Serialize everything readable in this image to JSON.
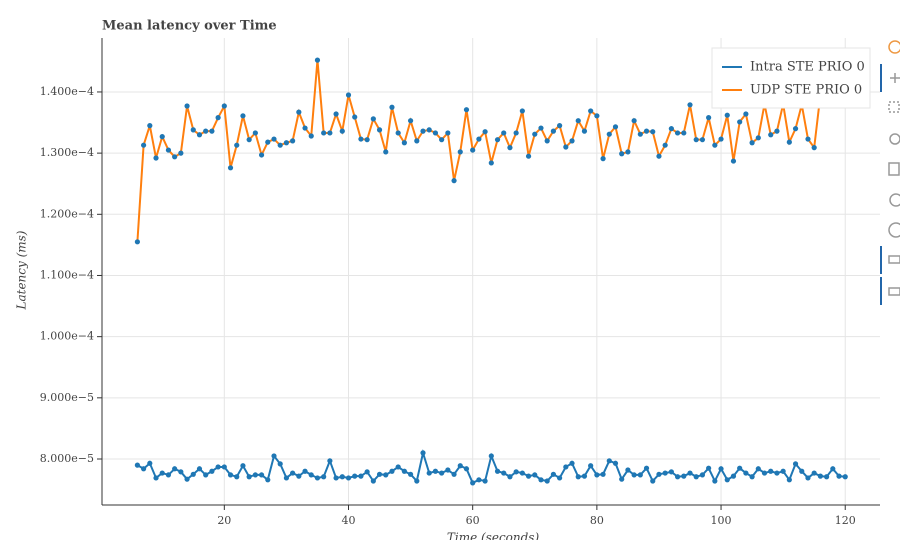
{
  "chart_data": {
    "type": "line",
    "title": "Mean latency over Time",
    "x_label": "Time (seconds)",
    "y_label": "Latency (ms)",
    "x": [
      6,
      7,
      8,
      9,
      10,
      11,
      12,
      13,
      14,
      15,
      16,
      17,
      18,
      19,
      20,
      21,
      22,
      23,
      24,
      25,
      26,
      27,
      28,
      29,
      30,
      31,
      32,
      33,
      34,
      35,
      36,
      37,
      38,
      39,
      40,
      41,
      42,
      43,
      44,
      45,
      46,
      47,
      48,
      49,
      50,
      51,
      52,
      53,
      54,
      55,
      56,
      57,
      58,
      59,
      60,
      61,
      62,
      63,
      64,
      65,
      66,
      67,
      68,
      69,
      70,
      71,
      72,
      73,
      74,
      75,
      76,
      77,
      78,
      79,
      80,
      81,
      82,
      83,
      84,
      85,
      86,
      87,
      88,
      89,
      90,
      91,
      92,
      93,
      94,
      95,
      96,
      97,
      98,
      99,
      100,
      101,
      102,
      103,
      104,
      105,
      106,
      107,
      108,
      109,
      110,
      111,
      112,
      113,
      114,
      115,
      116,
      117,
      118,
      119,
      120
    ],
    "series": [
      {
        "name": "Intra STE PRIO 0",
        "color": "#1f77b4",
        "marker_color": "#1f77b4",
        "values": [
          7.9e-05,
          7.84e-05,
          7.93e-05,
          7.69e-05,
          7.77e-05,
          7.74e-05,
          7.84e-05,
          7.79e-05,
          7.67e-05,
          7.75e-05,
          7.84e-05,
          7.74e-05,
          7.8e-05,
          7.87e-05,
          7.87e-05,
          7.74e-05,
          7.71e-05,
          7.89e-05,
          7.71e-05,
          7.74e-05,
          7.74e-05,
          7.66e-05,
          8.05e-05,
          7.92e-05,
          7.69e-05,
          7.77e-05,
          7.72e-05,
          7.8e-05,
          7.74e-05,
          7.69e-05,
          7.71e-05,
          7.97e-05,
          7.69e-05,
          7.71e-05,
          7.69e-05,
          7.72e-05,
          7.72e-05,
          7.79e-05,
          7.64e-05,
          7.75e-05,
          7.74e-05,
          7.8e-05,
          7.87e-05,
          7.8e-05,
          7.75e-05,
          7.64e-05,
          8.1e-05,
          7.77e-05,
          7.8e-05,
          7.77e-05,
          7.82e-05,
          7.75e-05,
          7.89e-05,
          7.84e-05,
          7.61e-05,
          7.66e-05,
          7.64e-05,
          8.05e-05,
          7.8e-05,
          7.77e-05,
          7.71e-05,
          7.79e-05,
          7.77e-05,
          7.72e-05,
          7.74e-05,
          7.66e-05,
          7.64e-05,
          7.75e-05,
          7.69e-05,
          7.87e-05,
          7.93e-05,
          7.71e-05,
          7.72e-05,
          7.89e-05,
          7.74e-05,
          7.75e-05,
          7.97e-05,
          7.93e-05,
          7.67e-05,
          7.82e-05,
          7.74e-05,
          7.74e-05,
          7.85e-05,
          7.64e-05,
          7.75e-05,
          7.77e-05,
          7.79e-05,
          7.71e-05,
          7.72e-05,
          7.77e-05,
          7.71e-05,
          7.74e-05,
          7.85e-05,
          7.64e-05,
          7.84e-05,
          7.66e-05,
          7.72e-05,
          7.85e-05,
          7.77e-05,
          7.71e-05,
          7.84e-05,
          7.77e-05,
          7.8e-05,
          7.77e-05,
          7.8e-05,
          7.66e-05,
          7.92e-05,
          7.8e-05,
          7.69e-05,
          7.77e-05,
          7.72e-05,
          7.71e-05,
          7.84e-05,
          7.72e-05,
          7.71e-05
        ]
      },
      {
        "name": "UDP STE PRIO 0",
        "color": "#ff7f0e",
        "marker_color": "#1f77b4",
        "values": [
          0.0001155,
          0.0001313,
          0.0001345,
          0.0001292,
          0.0001327,
          0.0001305,
          0.0001294,
          0.00013,
          0.0001377,
          0.0001338,
          0.000133,
          0.0001336,
          0.0001336,
          0.0001358,
          0.0001377,
          0.0001276,
          0.0001313,
          0.0001361,
          0.0001322,
          0.0001333,
          0.0001297,
          0.0001318,
          0.0001323,
          0.0001313,
          0.0001317,
          0.000132,
          0.0001367,
          0.0001341,
          0.0001328,
          0.0001452,
          0.0001333,
          0.0001333,
          0.0001364,
          0.0001336,
          0.0001395,
          0.0001359,
          0.0001323,
          0.0001322,
          0.0001356,
          0.0001338,
          0.0001302,
          0.0001375,
          0.0001333,
          0.0001317,
          0.0001353,
          0.000132,
          0.0001336,
          0.0001338,
          0.0001333,
          0.0001322,
          0.0001333,
          0.0001255,
          0.0001302,
          0.0001371,
          0.0001305,
          0.0001323,
          0.0001335,
          0.0001284,
          0.0001322,
          0.0001333,
          0.0001309,
          0.0001333,
          0.0001369,
          0.0001295,
          0.0001331,
          0.0001341,
          0.000132,
          0.0001336,
          0.0001345,
          0.000131,
          0.000132,
          0.0001353,
          0.0001336,
          0.0001369,
          0.0001361,
          0.0001291,
          0.0001331,
          0.0001343,
          0.0001299,
          0.0001302,
          0.0001353,
          0.0001331,
          0.0001336,
          0.0001335,
          0.0001295,
          0.0001313,
          0.000134,
          0.0001333,
          0.0001333,
          0.0001379,
          0.0001322,
          0.0001322,
          0.0001358,
          0.0001313,
          0.0001323,
          0.0001362,
          0.0001287,
          0.0001351,
          0.0001364,
          0.0001317,
          0.0001325,
          0.000138,
          0.000133,
          0.0001336,
          0.000138,
          0.0001318,
          0.000134,
          0.0001379,
          0.0001323,
          0.0001309,
          0.0001395,
          0.0001395,
          0.0001382,
          0.0001395,
          0.0001388
        ]
      }
    ],
    "xlim": [
      0.3,
      125.6
    ],
    "xticks": [
      20,
      40,
      60,
      80,
      100,
      120
    ],
    "ylim": [
      7.248e-05,
      0.00014882
    ],
    "yticks": [
      {
        "value": 8e-05,
        "label": "8.000e−5"
      },
      {
        "value": 9e-05,
        "label": "9.000e−5"
      },
      {
        "value": 0.0001,
        "label": "1.000e−4"
      },
      {
        "value": 0.00011,
        "label": "1.100e−4"
      },
      {
        "value": 0.00012,
        "label": "1.200e−4"
      },
      {
        "value": 0.00013,
        "label": "1.300e−4"
      },
      {
        "value": 0.00014,
        "label": "1.400e−4"
      }
    ],
    "grid": true,
    "legend_position": "top-right"
  }
}
